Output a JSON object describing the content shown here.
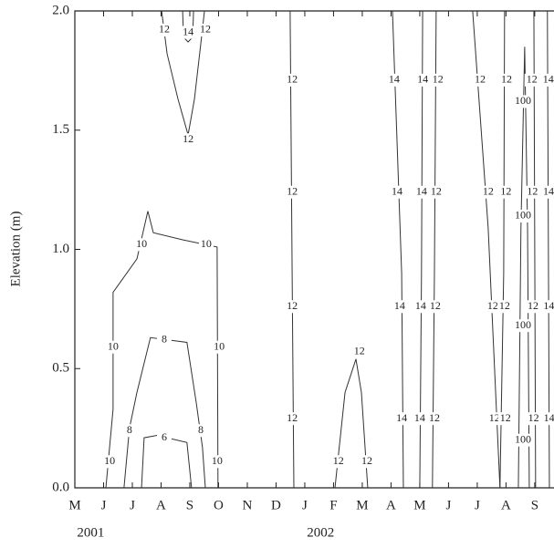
{
  "chart_data": {
    "type": "contour",
    "y_label": "Elevation (m)",
    "categories": [
      "M",
      "J",
      "J",
      "A",
      "S",
      "O",
      "N",
      "D",
      "J",
      "F",
      "M",
      "A",
      "M",
      "J",
      "J",
      "A",
      "S"
    ],
    "years": [
      "2001",
      "2002"
    ],
    "xlim": [
      0,
      16.67
    ],
    "ylim": [
      0,
      2
    ],
    "yticks": [
      {
        "value": 0,
        "label": "0.0"
      },
      0.5,
      {
        "value": 1,
        "label": "1.0"
      },
      1.5,
      {
        "value": 2,
        "label": "2.0"
      }
    ],
    "color": "#333333",
    "contours": [
      {
        "level": 12,
        "x": [
          3.02,
          3.21,
          3.59,
          3.94,
          4.16,
          4.38,
          4.51
        ],
        "y": [
          2,
          1.82,
          1.63,
          1.48,
          1.63,
          1.86,
          2
        ],
        "label_x": [
          3.11,
          3.94,
          4.54
        ],
        "label_y": [
          1.92,
          1.46,
          1.92
        ]
      },
      {
        "level": 14,
        "x": [
          3.75,
          3.78,
          3.94,
          4.1,
          4.13
        ],
        "y": [
          2,
          1.89,
          1.87,
          1.89,
          2
        ],
        "label_x": [
          3.94
        ],
        "label_y": [
          1.91
        ]
      },
      {
        "level": 10,
        "x": [
          1.08,
          1.33,
          1.33,
          2.16,
          2.54,
          2.73,
          3.75,
          4.95,
          4.98
        ],
        "y": [
          0,
          0.33,
          0.82,
          0.96,
          1.16,
          1.07,
          1.04,
          1.01,
          0
        ],
        "label_x": [
          1.21,
          1.33,
          2.32,
          4.57,
          5.02,
          4.95
        ],
        "label_y": [
          0.11,
          0.59,
          1.02,
          1.02,
          0.59,
          0.11
        ]
      },
      {
        "level": 8,
        "x": [
          1.71,
          1.9,
          2.16,
          2.63,
          3.9,
          4.22,
          4.44,
          4.54
        ],
        "y": [
          0,
          0.25,
          0.4,
          0.63,
          0.61,
          0.36,
          0.17,
          0
        ],
        "label_x": [
          1.9,
          3.11,
          4.38
        ],
        "label_y": [
          0.24,
          0.62,
          0.24
        ]
      },
      {
        "level": 6,
        "x": [
          2.32,
          2.41,
          2.86,
          3.9,
          4.06
        ],
        "y": [
          0,
          0.21,
          0.22,
          0.19,
          0
        ],
        "label_x": [
          3.11
        ],
        "label_y": [
          0.21
        ]
      },
      {
        "level": 12,
        "x": [
          7.49,
          7.56,
          7.62
        ],
        "y": [
          2,
          0.9,
          0
        ],
        "label_x": [
          7.56,
          7.56,
          7.56,
          7.56
        ],
        "label_y": [
          1.71,
          1.24,
          0.76,
          0.29
        ]
      },
      {
        "level": 12,
        "x": [
          9.05,
          9.4,
          9.78,
          9.97,
          10.19
        ],
        "y": [
          0,
          0.4,
          0.54,
          0.4,
          0
        ],
        "label_x": [
          9.17,
          9.9,
          10.16
        ],
        "label_y": [
          0.11,
          0.57,
          0.11
        ]
      },
      {
        "level": 14,
        "x": [
          11.05,
          11.37,
          11.43
        ],
        "y": [
          2,
          0.9,
          0
        ],
        "label_x": [
          11.11,
          11.21,
          11.3,
          11.37
        ],
        "label_y": [
          1.71,
          1.24,
          0.76,
          0.29
        ]
      },
      {
        "level": 14,
        "x": [
          12.1,
          12.06,
          12.0
        ],
        "y": [
          2,
          0.9,
          0
        ],
        "label_x": [
          12.1,
          12.06,
          12.03,
          12.0
        ],
        "label_y": [
          1.71,
          1.24,
          0.76,
          0.29
        ]
      },
      {
        "level": 12,
        "x": [
          12.57,
          12.51,
          12.44
        ],
        "y": [
          2,
          0.9,
          0
        ],
        "label_x": [
          12.63,
          12.57,
          12.54,
          12.51
        ],
        "label_y": [
          1.71,
          1.24,
          0.76,
          0.29
        ]
      },
      {
        "level": 12,
        "x": [
          13.84,
          14.38,
          14.79
        ],
        "y": [
          2,
          1.09,
          0
        ],
        "label_x": [
          14.1,
          14.38,
          14.54,
          14.6
        ],
        "label_y": [
          1.71,
          1.24,
          0.76,
          0.29
        ]
      },
      {
        "level": 12,
        "x": [
          14.95,
          14.92,
          14.79
        ],
        "y": [
          2,
          0.9,
          0
        ],
        "label_x": [
          15.02,
          15.0,
          14.95,
          14.98
        ],
        "label_y": [
          1.71,
          1.24,
          0.76,
          0.29
        ]
      },
      {
        "level": 100,
        "x": [
          15.43,
          15.52,
          15.65,
          15.75,
          15.81
        ],
        "y": [
          0,
          1.09,
          1.85,
          1.09,
          0
        ],
        "label_x": [
          15.59,
          15.59,
          15.59,
          15.59
        ],
        "label_y": [
          1.62,
          1.14,
          0.68,
          0.2
        ]
      },
      {
        "level": 12,
        "x": [
          15.97,
          16.03
        ],
        "y": [
          2,
          0
        ],
        "label_x": [
          15.9,
          15.92,
          15.94,
          15.96
        ],
        "label_y": [
          1.71,
          1.24,
          0.76,
          0.29
        ]
      },
      {
        "level": 14,
        "x": [
          16.44,
          16.51
        ],
        "y": [
          2,
          0
        ],
        "label_x": [
          16.47,
          16.48,
          16.49,
          16.5
        ],
        "label_y": [
          1.71,
          1.24,
          0.76,
          0.29
        ]
      }
    ]
  }
}
